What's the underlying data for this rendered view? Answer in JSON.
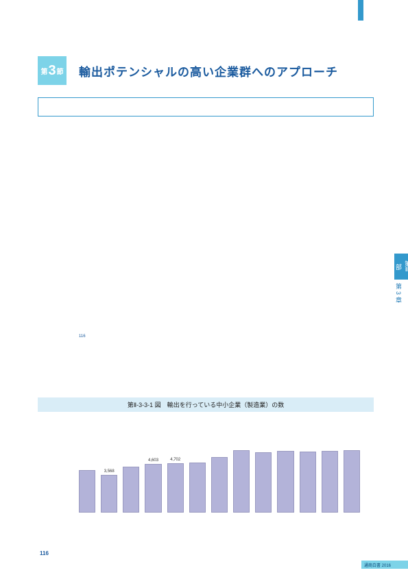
{
  "section": {
    "badge_prefix": "第",
    "badge_num": "3",
    "badge_suffix": "節",
    "title": "輸出ポテンシャルの高い企業群へのアプローチ"
  },
  "footnote_marker": "116",
  "side_tab": {
    "part": "第Ⅱ部",
    "chapter": "第3章"
  },
  "figure": {
    "title": "第Ⅱ-3-3-1 図　輸出を行っている中小企業（製造業）の数",
    "type": "bar",
    "bars": [
      {
        "label": "",
        "value": 4050
      },
      {
        "label": "3,568",
        "value": 3568
      },
      {
        "label": "",
        "value": 4380
      },
      {
        "label": "4,603",
        "value": 4603
      },
      {
        "label": "4,702",
        "value": 4702
      },
      {
        "label": "",
        "value": 4750
      },
      {
        "label": "",
        "value": 5250
      },
      {
        "label": "",
        "value": 5900
      },
      {
        "label": "",
        "value": 5700
      },
      {
        "label": "",
        "value": 5850
      },
      {
        "label": "",
        "value": 5800
      },
      {
        "label": "",
        "value": 5820
      },
      {
        "label": "",
        "value": 5900
      }
    ],
    "ymax": 6500,
    "bar_color": "#b3b3d9",
    "bar_border": "#9999c0",
    "title_bg": "#d9edf7"
  },
  "page_number": "116",
  "footer_text": "通商白書 2016",
  "colors": {
    "accent": "#3399cc",
    "light_accent": "#7dd3e8",
    "heading": "#1a5a9e"
  }
}
